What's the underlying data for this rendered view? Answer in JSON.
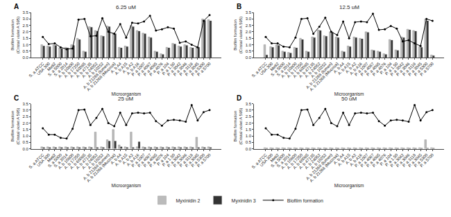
{
  "chart_data": [
    {
      "type": "bar",
      "title": "6.25 uM",
      "annotations": [
        "A"
      ],
      "x_label": "Microorganism",
      "y_label": "Biofilm formation\n(Cristal violet A 595)",
      "categories": [
        "S. a ATCC",
        "USA 300",
        "Meti2",
        "S. a 5000",
        "S. a 2014",
        "A. b 10800",
        "A. b 17250",
        "A. b 60085",
        "A. b 47135",
        "A. b 24052",
        "A. b 10252",
        "A. b 21268 (lumen)",
        "A. b 21268 (Mucosa)",
        "A. b A4",
        "A. b A15",
        "A. b A2",
        "A. b A16",
        "P. a 1007",
        "P. a 4087",
        "P. a 4085",
        "P. a 4076",
        "P. a 104",
        "P. a 1.50",
        "P. a 3042",
        "P. a 3046",
        "P. a 3118",
        "P. a 3045",
        "P. a 5300",
        "P. a 5700"
      ],
      "series": [
        {
          "name": "Myxinidin 2",
          "type": "bar",
          "color": "#bbbbbb",
          "values": [
            1.0,
            0.9,
            1.0,
            0.75,
            0.8,
            1.0,
            1.5,
            0.5,
            2.4,
            2.1,
            1.7,
            2.45,
            1.9,
            0.8,
            0.9,
            2.5,
            2.1,
            1.9,
            1.6,
            0.5,
            0.3,
            0.8,
            1.1,
            0.9,
            1.0,
            0.8,
            0.85,
            3.0,
            2.95
          ]
        },
        {
          "name": "Myxinidin 3",
          "type": "bar",
          "color": "#333333",
          "values": [
            0.9,
            0.85,
            0.95,
            0.7,
            0.75,
            0.95,
            1.4,
            0.45,
            2.35,
            2.05,
            1.65,
            2.4,
            1.85,
            0.75,
            0.85,
            2.4,
            2.05,
            1.85,
            1.55,
            0.45,
            0.25,
            0.75,
            1.05,
            0.85,
            0.95,
            0.75,
            0.8,
            2.9,
            2.85
          ]
        },
        {
          "name": "Biofilm formation",
          "type": "line",
          "color": "#000000",
          "marker": "circle",
          "values": [
            1.6,
            1.05,
            1.1,
            0.8,
            0.65,
            0.7,
            2.95,
            3.0,
            1.65,
            1.7,
            3.05,
            2.0,
            1.85,
            2.6,
            1.55,
            2.7,
            2.65,
            2.8,
            3.25,
            2.1,
            2.2,
            2.35,
            2.25,
            1.15,
            1.25,
            1.0,
            0.8,
            2.85,
            3.3
          ]
        }
      ],
      "ylim": [
        0,
        3.5
      ],
      "yticks": [
        {
          "value": 0,
          "label": "0.0"
        },
        0.5,
        {
          "value": 1,
          "label": "1.0"
        },
        1.5,
        {
          "value": 2,
          "label": "2.0"
        },
        2.5,
        {
          "value": 3,
          "label": "3.0"
        },
        3.5
      ],
      "grid": false,
      "legend": "bottom"
    },
    {
      "type": "bar",
      "title": "12.5 uM",
      "annotations": [
        "B"
      ],
      "x_label": "Microorganism",
      "y_label": "Biofilm formation\n(Cristal violet A 595)",
      "categories": [
        "S. a ATCC",
        "USA 300",
        "Meti2",
        "S. a 5000",
        "S. a 2014",
        "A. b 10800",
        "A. b 17250",
        "A. b 60085",
        "A. b 47135",
        "A. b 24052",
        "A. b 10252",
        "A. b 21268 (lumen)",
        "A. b 21268 (Mucosa)",
        "A. b A4",
        "A. b A15",
        "A. b A2",
        "A. b A16",
        "P. a 1007",
        "P. a 4087",
        "P. a 4085",
        "P. a 4076",
        "P. a 104",
        "P. a 1.50",
        "P. a 3042",
        "P. a 3046",
        "P. a 3118",
        "P. a 3045",
        "P. a 5300",
        "P. a 5700"
      ],
      "series": [
        {
          "name": "Myxinidin 2",
          "type": "bar",
          "color": "#bbbbbb",
          "values": [
            1.0,
            0.85,
            1.0,
            0.5,
            0.4,
            0.8,
            1.5,
            0.5,
            1.6,
            2.15,
            1.7,
            2.0,
            1.6,
            0.5,
            0.9,
            1.6,
            1.5,
            2.0,
            0.6,
            0.5,
            0.3,
            1.4,
            0.6,
            1.6,
            2.2,
            2.1,
            0.85,
            3.0,
            0.2
          ]
        },
        {
          "name": "Myxinidin 3",
          "type": "bar",
          "color": "#333333",
          "values": [
            0.2,
            0.8,
            0.95,
            0.45,
            0.35,
            0.75,
            1.4,
            0.45,
            1.55,
            2.1,
            1.65,
            1.95,
            1.55,
            0.45,
            0.85,
            1.55,
            1.45,
            1.95,
            0.55,
            0.45,
            0.25,
            1.35,
            0.55,
            1.55,
            2.15,
            2.05,
            0.8,
            2.85,
            0.15
          ]
        },
        {
          "name": "Biofilm formation",
          "type": "line",
          "color": "#000000",
          "marker": "circle",
          "values": [
            1.6,
            1.1,
            1.1,
            0.85,
            0.8,
            1.55,
            3.0,
            3.05,
            1.85,
            2.4,
            3.1,
            2.0,
            1.75,
            2.8,
            1.5,
            2.75,
            2.8,
            2.75,
            3.4,
            2.15,
            2.2,
            2.45,
            2.25,
            1.25,
            1.35,
            1.1,
            0.9,
            3.0,
            2.85
          ]
        }
      ],
      "ylim": [
        0,
        3.5
      ],
      "yticks": [
        {
          "value": 0,
          "label": "0.0"
        },
        0.5,
        {
          "value": 1,
          "label": "1.0"
        },
        1.5,
        {
          "value": 2,
          "label": "2.0"
        },
        2.5,
        {
          "value": 3,
          "label": "3.0"
        },
        3.5
      ],
      "grid": false,
      "legend": "bottom"
    },
    {
      "type": "bar",
      "title": "25 uM",
      "annotations": [
        "C"
      ],
      "x_label": "Microorganism",
      "y_label": "Biofilm formation\n(Cristal violet A 595)",
      "categories": [
        "S. a ATCC",
        "USA 300",
        "Meti2",
        "S. a 5000",
        "S. a 2014",
        "A. b 10800",
        "A. b 17250",
        "A. b 60085",
        "A. b 47135",
        "A. b 24052",
        "A. b 10252",
        "A. b 21268 (lumen)",
        "A. b 21268 (Mucosa)",
        "A. b A4",
        "A. b A15",
        "A. b A2",
        "A. b A16",
        "P. a 1007",
        "P. a 4087",
        "P. a 4085",
        "P. a 4076",
        "P. a 104",
        "P. a 1.50",
        "P. a 3042",
        "P. a 3046",
        "P. a 3118",
        "P. a 3045",
        "P. a 5300",
        "P. a 5700"
      ],
      "series": [
        {
          "name": "Myxinidin 2",
          "type": "bar",
          "color": "#bbbbbb",
          "values": [
            0.15,
            0.15,
            0.15,
            0.15,
            0.15,
            0.15,
            0.15,
            0.15,
            0.15,
            1.3,
            0.15,
            0.7,
            1.5,
            0.3,
            0.15,
            1.3,
            0.15,
            0.15,
            0.15,
            0.15,
            0.15,
            0.15,
            0.15,
            0.15,
            0.15,
            0.15,
            0.9,
            0.15,
            0.15
          ]
        },
        {
          "name": "Myxinidin 3",
          "type": "bar",
          "color": "#333333",
          "values": [
            0.1,
            0.1,
            0.1,
            0.1,
            0.1,
            0.1,
            0.1,
            0.1,
            0.1,
            0.1,
            0.1,
            0.6,
            0.6,
            0.15,
            0.1,
            0.1,
            0.55,
            0.1,
            0.1,
            0.1,
            0.1,
            0.1,
            0.1,
            0.1,
            0.1,
            0.1,
            0.1,
            0.1,
            0.1
          ]
        },
        {
          "name": "Biofilm formation",
          "type": "line",
          "color": "#000000",
          "marker": "circle",
          "values": [
            1.6,
            1.1,
            1.1,
            0.85,
            0.8,
            1.55,
            3.0,
            3.05,
            1.85,
            2.4,
            3.1,
            2.0,
            1.75,
            2.8,
            1.85,
            2.75,
            2.8,
            2.75,
            2.8,
            2.15,
            1.8,
            2.2,
            2.25,
            2.2,
            2.1,
            3.4,
            2.2,
            2.85,
            3.0
          ]
        }
      ],
      "ylim": [
        0,
        3.5
      ],
      "yticks": [
        {
          "value": 0,
          "label": "0.0"
        },
        0.5,
        {
          "value": 1,
          "label": "1.0"
        },
        1.5,
        {
          "value": 2,
          "label": "2.0"
        },
        2.5,
        {
          "value": 3,
          "label": "3.0"
        },
        3.5
      ],
      "grid": false,
      "legend": "bottom"
    },
    {
      "type": "bar",
      "title": "50 uM",
      "annotations": [
        "D"
      ],
      "x_label": "Microorganism",
      "y_label": "Biofilm formation\n(Cristal violet A 595)",
      "categories": [
        "S. a ATCC",
        "USA 300",
        "Meti2",
        "S. a 5000",
        "S. a 2014",
        "A. b 10800",
        "A. b 17250",
        "A. b 60085",
        "A. b 47135",
        "A. b 24052",
        "A. b 10252",
        "A. b 21268 (lumen)",
        "A. b 21268 (Mucosa)",
        "A. b A4",
        "A. b A15",
        "A. b A2",
        "A. b A16",
        "P. a 1007",
        "P. a 4087",
        "P. a 4085",
        "P. a 4076",
        "P. a 104",
        "P. a 1.50",
        "P. a 3042",
        "P. a 3046",
        "P. a 3118",
        "P. a 3045",
        "P. a 5300",
        "P. a 5700"
      ],
      "series": [
        {
          "name": "Myxinidin 2",
          "type": "bar",
          "color": "#bbbbbb",
          "values": [
            0.08,
            0.08,
            0.08,
            0.08,
            0.08,
            0.08,
            0.08,
            0.08,
            0.08,
            0.08,
            0.08,
            0.08,
            0.08,
            0.08,
            0.08,
            0.08,
            0.08,
            0.08,
            0.08,
            0.08,
            0.08,
            0.08,
            0.08,
            0.08,
            0.08,
            0.08,
            0.08,
            0.7,
            0.08
          ]
        },
        {
          "name": "Myxinidin 3",
          "type": "bar",
          "color": "#333333",
          "values": [
            0.05,
            0.05,
            0.05,
            0.05,
            0.05,
            0.05,
            0.05,
            0.05,
            0.05,
            0.05,
            0.05,
            0.05,
            0.05,
            0.05,
            0.05,
            0.05,
            0.05,
            0.05,
            0.05,
            0.05,
            0.05,
            0.05,
            0.05,
            0.05,
            0.05,
            0.05,
            0.05,
            0.05,
            0.05
          ]
        },
        {
          "name": "Biofilm formation",
          "type": "line",
          "color": "#000000",
          "marker": "circle",
          "values": [
            1.6,
            1.1,
            1.1,
            0.85,
            0.8,
            1.55,
            3.0,
            3.05,
            1.85,
            2.4,
            3.1,
            2.0,
            1.75,
            2.8,
            1.85,
            2.75,
            2.8,
            2.75,
            2.8,
            2.15,
            1.8,
            2.2,
            2.25,
            2.2,
            2.1,
            3.4,
            2.2,
            2.85,
            3.0
          ]
        }
      ],
      "ylim": [
        0,
        3.5
      ],
      "yticks": [
        {
          "value": 0,
          "label": "0.0"
        },
        0.5,
        {
          "value": 1,
          "label": "1.0"
        },
        1.5,
        {
          "value": 2,
          "label": "2.0"
        },
        2.5,
        {
          "value": 3,
          "label": "3.0"
        },
        3.5
      ],
      "grid": false,
      "legend": "bottom"
    }
  ]
}
